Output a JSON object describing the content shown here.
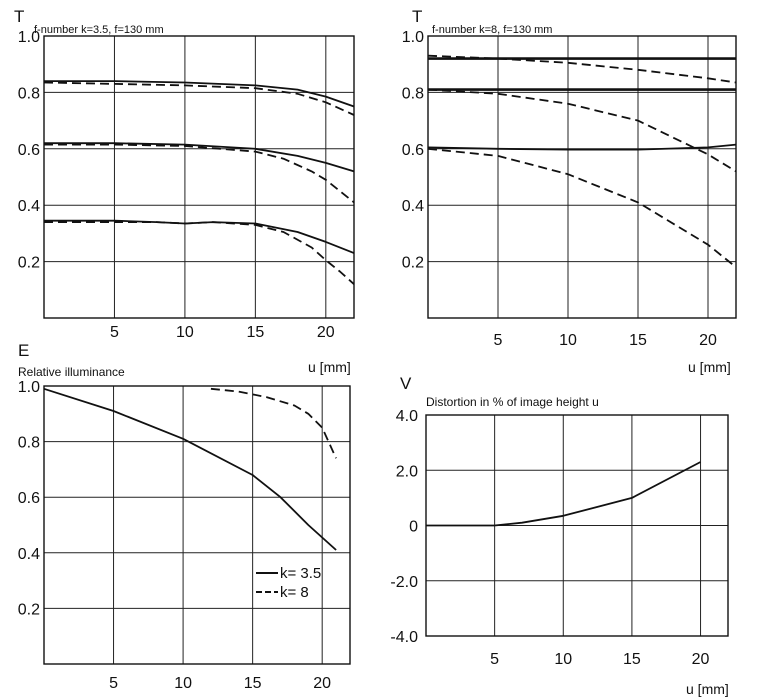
{
  "chart_data": [
    {
      "id": "p1",
      "type": "line",
      "title": "f-number k=3.5, f=130 mm",
      "ylabel": "T",
      "xlabel": "",
      "xlim": [
        0,
        22
      ],
      "ylim": [
        0,
        1.0
      ],
      "xticks": [
        5,
        10,
        15,
        20
      ],
      "yticks": [
        0.2,
        0.4,
        0.6,
        0.8,
        1.0
      ],
      "ytick_labels": [
        "0.2",
        "0.4",
        "0.6",
        "0.8",
        "1.0"
      ],
      "grid": true,
      "series": [
        {
          "style": "solid",
          "x": [
            0,
            5,
            10,
            15,
            18,
            20,
            22
          ],
          "y": [
            0.84,
            0.84,
            0.835,
            0.825,
            0.81,
            0.785,
            0.75
          ]
        },
        {
          "style": "dashed",
          "x": [
            0,
            5,
            10,
            15,
            18,
            20,
            22
          ],
          "y": [
            0.835,
            0.83,
            0.825,
            0.815,
            0.795,
            0.765,
            0.72
          ]
        },
        {
          "style": "solid",
          "x": [
            0,
            5,
            10,
            15,
            18,
            20,
            22
          ],
          "y": [
            0.62,
            0.62,
            0.615,
            0.6,
            0.575,
            0.55,
            0.52
          ]
        },
        {
          "style": "dashed",
          "x": [
            0,
            5,
            10,
            15,
            17,
            19,
            20,
            22
          ],
          "y": [
            0.615,
            0.615,
            0.61,
            0.59,
            0.565,
            0.52,
            0.49,
            0.41
          ]
        },
        {
          "style": "solid",
          "x": [
            0,
            5,
            8,
            10,
            12,
            15,
            18,
            20,
            22
          ],
          "y": [
            0.345,
            0.345,
            0.34,
            0.335,
            0.34,
            0.335,
            0.305,
            0.27,
            0.23
          ]
        },
        {
          "style": "dashed",
          "x": [
            0,
            5,
            8,
            10,
            12,
            15,
            17,
            19,
            20,
            21,
            22
          ],
          "y": [
            0.34,
            0.34,
            0.34,
            0.335,
            0.34,
            0.33,
            0.305,
            0.25,
            0.205,
            0.165,
            0.12
          ]
        }
      ]
    },
    {
      "id": "p2",
      "type": "line",
      "title": "f-number k=8, f=130 mm",
      "ylabel": "T",
      "xlabel": "u [mm]",
      "xlim": [
        0,
        22
      ],
      "ylim": [
        0,
        1.0
      ],
      "xticks": [
        5,
        10,
        15,
        20
      ],
      "yticks": [
        0.2,
        0.4,
        0.6,
        0.8,
        1.0
      ],
      "ytick_labels": [
        "0.2",
        "0.4",
        "0.6",
        "0.8",
        "1.0"
      ],
      "grid": true,
      "series": [
        {
          "style": "solid",
          "x": [
            0,
            5,
            10,
            15,
            20,
            22
          ],
          "y": [
            0.92,
            0.92,
            0.92,
            0.92,
            0.92,
            0.92
          ]
        },
        {
          "style": "dashed",
          "x": [
            0,
            5,
            10,
            15,
            20,
            22
          ],
          "y": [
            0.93,
            0.92,
            0.905,
            0.88,
            0.85,
            0.835
          ]
        },
        {
          "style": "solid",
          "x": [
            0,
            5,
            10,
            15,
            20,
            22
          ],
          "y": [
            0.81,
            0.81,
            0.81,
            0.81,
            0.81,
            0.81
          ]
        },
        {
          "style": "dashed",
          "x": [
            0,
            5,
            10,
            15,
            20,
            22
          ],
          "y": [
            0.81,
            0.795,
            0.76,
            0.7,
            0.58,
            0.52
          ]
        },
        {
          "style": "solid",
          "x": [
            0,
            5,
            10,
            15,
            20,
            22
          ],
          "y": [
            0.605,
            0.6,
            0.597,
            0.597,
            0.605,
            0.615
          ]
        },
        {
          "style": "dashed",
          "x": [
            0,
            5,
            10,
            15,
            20,
            22
          ],
          "y": [
            0.6,
            0.575,
            0.51,
            0.41,
            0.26,
            0.18
          ]
        }
      ]
    },
    {
      "id": "p3",
      "type": "line",
      "title": "Relative illuminance",
      "ylabel": "E",
      "xlabel": "",
      "xlim": [
        0,
        22
      ],
      "ylim": [
        0,
        1.0
      ],
      "xticks": [
        5,
        10,
        15,
        20
      ],
      "yticks": [
        0.2,
        0.4,
        0.6,
        0.8,
        1.0
      ],
      "ytick_labels": [
        "0.2",
        "0.4",
        "0.6",
        "0.8",
        "1.0"
      ],
      "grid": true,
      "legend": {
        "position": "bottom-right",
        "entries": [
          {
            "label": "k= 3.5",
            "style": "solid"
          },
          {
            "label": "k= 8",
            "style": "dashed"
          }
        ]
      },
      "series": [
        {
          "style": "solid",
          "name": "k= 3.5",
          "x": [
            0,
            5,
            10,
            15,
            17,
            19,
            21
          ],
          "y": [
            0.99,
            0.91,
            0.81,
            0.68,
            0.6,
            0.5,
            0.41
          ]
        },
        {
          "style": "dashed",
          "name": "k= 8",
          "x": [
            12,
            14,
            16,
            18,
            19,
            20,
            21
          ],
          "y": [
            0.99,
            0.98,
            0.96,
            0.93,
            0.9,
            0.85,
            0.74
          ]
        }
      ]
    },
    {
      "id": "p4",
      "type": "line",
      "title": "Distortion in % of image height u",
      "ylabel": "V",
      "xlabel": "u [mm]",
      "xlim": [
        0,
        22
      ],
      "ylim": [
        -4.0,
        4.0
      ],
      "xticks": [
        5,
        10,
        15,
        20
      ],
      "yticks": [
        -4.0,
        -2.0,
        0,
        2.0,
        4.0
      ],
      "ytick_labels": [
        "-4.0",
        "-2.0",
        "0",
        "2.0",
        "4.0"
      ],
      "grid": true,
      "series": [
        {
          "style": "solid",
          "x": [
            0,
            5,
            7,
            10,
            15,
            20
          ],
          "y": [
            0,
            0,
            0.1,
            0.35,
            1.0,
            2.3
          ]
        }
      ]
    }
  ]
}
